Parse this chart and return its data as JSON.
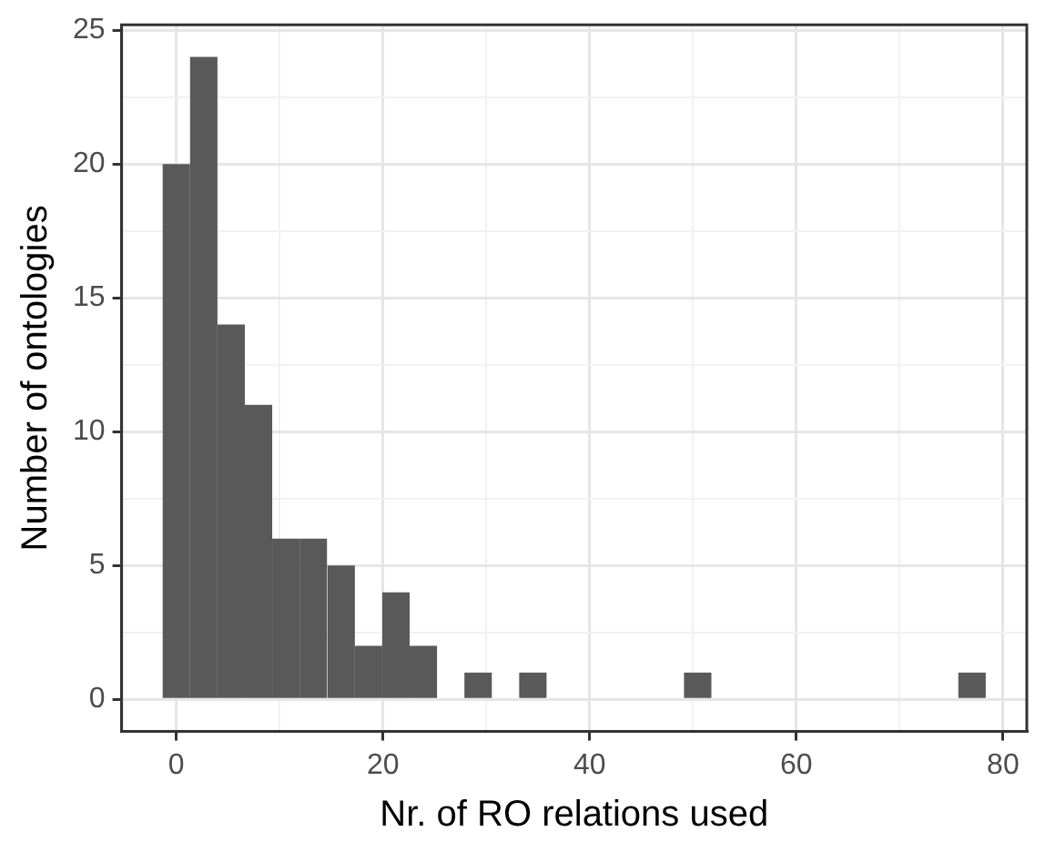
{
  "chart_data": {
    "type": "histogram",
    "xlabel": "Nr. of RO relations used",
    "ylabel": "Number of ontologies",
    "bins": [
      -1.3,
      1.3,
      4.0,
      6.6,
      9.3,
      11.9,
      14.6,
      17.3,
      19.9,
      22.6,
      25.2,
      27.9,
      30.5,
      33.2,
      35.8,
      49.1,
      51.8,
      75.7,
      78.3
    ],
    "values": [
      20,
      24,
      14,
      11,
      6,
      6,
      5,
      2,
      4,
      2,
      0,
      1,
      0,
      1,
      0,
      1,
      0,
      1
    ],
    "color": "#595959",
    "xlim": [
      -5.3,
      82.3
    ],
    "xticks": [
      0,
      {
        "value": 10,
        "label": null
      },
      20,
      {
        "value": 30,
        "label": null
      },
      40,
      {
        "value": 50,
        "label": null
      },
      60,
      {
        "value": 70,
        "label": null
      },
      80
    ],
    "ylim": [
      -1.2,
      25.2
    ],
    "yticks": [
      0,
      {
        "value": 2.5,
        "label": null
      },
      5,
      {
        "value": 7.5,
        "label": null
      },
      10,
      {
        "value": 12.5,
        "label": null
      },
      15,
      {
        "value": 17.5,
        "label": null
      },
      20,
      {
        "value": 22.5,
        "label": null
      },
      25
    ],
    "grid": true
  }
}
